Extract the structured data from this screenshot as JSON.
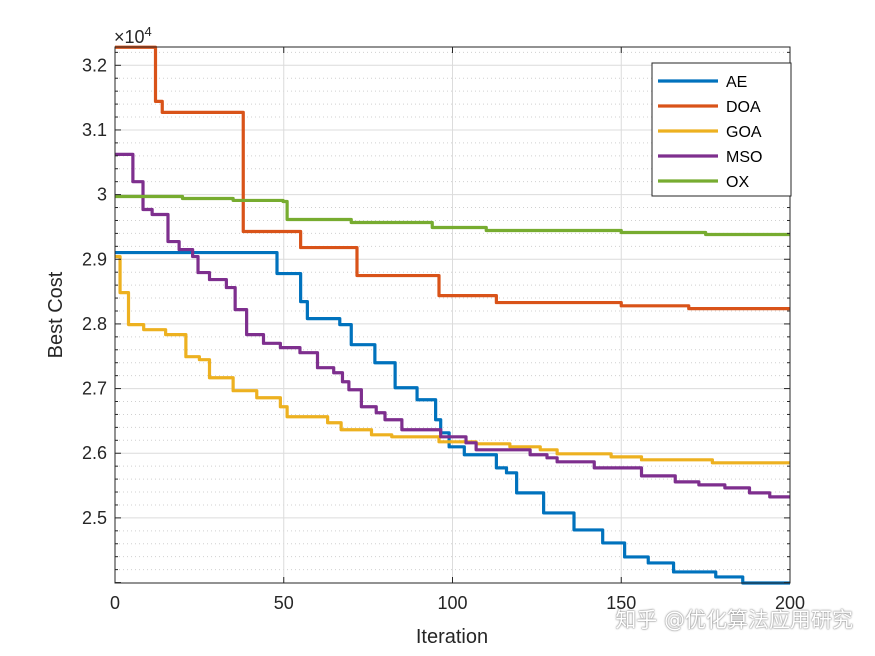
{
  "chart_data": {
    "type": "line",
    "title": "",
    "xlabel": "Iteration",
    "ylabel": "Best Cost",
    "y_exponent_label": "×10^4",
    "y_exponent_base": "×10",
    "y_exponent_power": "4",
    "xlim": [
      0,
      200
    ],
    "ylim": [
      23993,
      32283
    ],
    "x_ticks": [
      "0",
      "50",
      "100",
      "150",
      "200"
    ],
    "x_tick_values": [
      0,
      50,
      100,
      150,
      200
    ],
    "y_ticks": [
      "2.5",
      "2.6",
      "2.7",
      "2.8",
      "2.9",
      "3",
      "3.1",
      "3.2"
    ],
    "y_tick_values": [
      25000,
      26000,
      27000,
      28000,
      29000,
      30000,
      31000,
      32000
    ],
    "grid": true,
    "minor_grid": true,
    "legend_position": "top-right",
    "series": [
      {
        "name": "AE",
        "color": "#0072BD",
        "points": [
          [
            0,
            29104
          ],
          [
            48,
            28779
          ],
          [
            55,
            28345
          ],
          [
            57,
            28082
          ],
          [
            66.6,
            27989
          ],
          [
            70,
            27679
          ],
          [
            77,
            27400
          ],
          [
            83,
            27013
          ],
          [
            89.5,
            26827
          ],
          [
            95,
            26518
          ],
          [
            96.5,
            26316
          ],
          [
            99,
            26099
          ],
          [
            103.5,
            25976
          ],
          [
            113,
            25774
          ],
          [
            116,
            25697
          ],
          [
            119,
            25387
          ],
          [
            127,
            25077
          ],
          [
            136,
            24814
          ],
          [
            144.5,
            24613
          ],
          [
            151,
            24396
          ],
          [
            158,
            24303
          ],
          [
            165.5,
            24164
          ],
          [
            178,
            24087
          ],
          [
            186,
            23993
          ]
        ]
      },
      {
        "name": "DOA",
        "color": "#D95319",
        "points": [
          [
            0,
            32279
          ],
          [
            12,
            31442
          ],
          [
            14,
            31272
          ],
          [
            38,
            29429
          ],
          [
            55,
            29181
          ],
          [
            71.7,
            28748
          ],
          [
            96,
            28438
          ],
          [
            113,
            28330
          ],
          [
            150,
            28280
          ],
          [
            170,
            28237
          ]
        ]
      },
      {
        "name": "GOA",
        "color": "#EDB120",
        "points": [
          [
            0,
            29042
          ],
          [
            1.5,
            28484
          ],
          [
            4,
            27989
          ],
          [
            8.5,
            27911
          ],
          [
            15,
            27834
          ],
          [
            21,
            27493
          ],
          [
            25,
            27447
          ],
          [
            28,
            27168
          ],
          [
            35,
            26967
          ],
          [
            42,
            26858
          ],
          [
            49,
            26719
          ],
          [
            51,
            26564
          ],
          [
            63,
            26471
          ],
          [
            67,
            26363
          ],
          [
            76,
            26285
          ],
          [
            82,
            26254
          ],
          [
            96,
            26177
          ],
          [
            107,
            26146
          ],
          [
            117,
            26099
          ],
          [
            126,
            26053
          ],
          [
            131,
            25991
          ],
          [
            147,
            25944
          ],
          [
            156,
            25898
          ],
          [
            177,
            25852
          ]
        ]
      },
      {
        "name": "MSO",
        "color": "#7E2F8E",
        "points": [
          [
            0,
            30622
          ],
          [
            5.3,
            30200
          ],
          [
            8.3,
            29770
          ],
          [
            11,
            29692
          ],
          [
            15.7,
            29274
          ],
          [
            19,
            29150
          ],
          [
            23,
            29042
          ],
          [
            24.6,
            28794
          ],
          [
            28,
            28686
          ],
          [
            33,
            28562
          ],
          [
            35.6,
            28221
          ],
          [
            39,
            27834
          ],
          [
            44,
            27700
          ],
          [
            49,
            27633
          ],
          [
            54.8,
            27555
          ],
          [
            60,
            27323
          ],
          [
            64.8,
            27245
          ],
          [
            67.4,
            27106
          ],
          [
            69.3,
            26982
          ],
          [
            73,
            26719
          ],
          [
            77.4,
            26626
          ],
          [
            80,
            26518
          ],
          [
            85,
            26363
          ],
          [
            96.5,
            26254
          ],
          [
            104,
            26161
          ],
          [
            107,
            26053
          ],
          [
            123,
            25976
          ],
          [
            128,
            25929
          ],
          [
            131,
            25867
          ],
          [
            142,
            25774
          ],
          [
            156,
            25650
          ],
          [
            166,
            25557
          ],
          [
            173,
            25511
          ],
          [
            180.7,
            25464
          ],
          [
            188,
            25387
          ],
          [
            194,
            25325
          ]
        ]
      },
      {
        "name": "OX",
        "color": "#77AC30",
        "points": [
          [
            0,
            29971
          ],
          [
            20,
            29940
          ],
          [
            35,
            29910
          ],
          [
            49.8,
            29894
          ],
          [
            51,
            29615
          ],
          [
            70,
            29569
          ],
          [
            94,
            29491
          ],
          [
            110,
            29445
          ],
          [
            150,
            29414
          ],
          [
            175,
            29383
          ]
        ]
      }
    ]
  },
  "watermark": "知乎 @优化算法应用研究"
}
